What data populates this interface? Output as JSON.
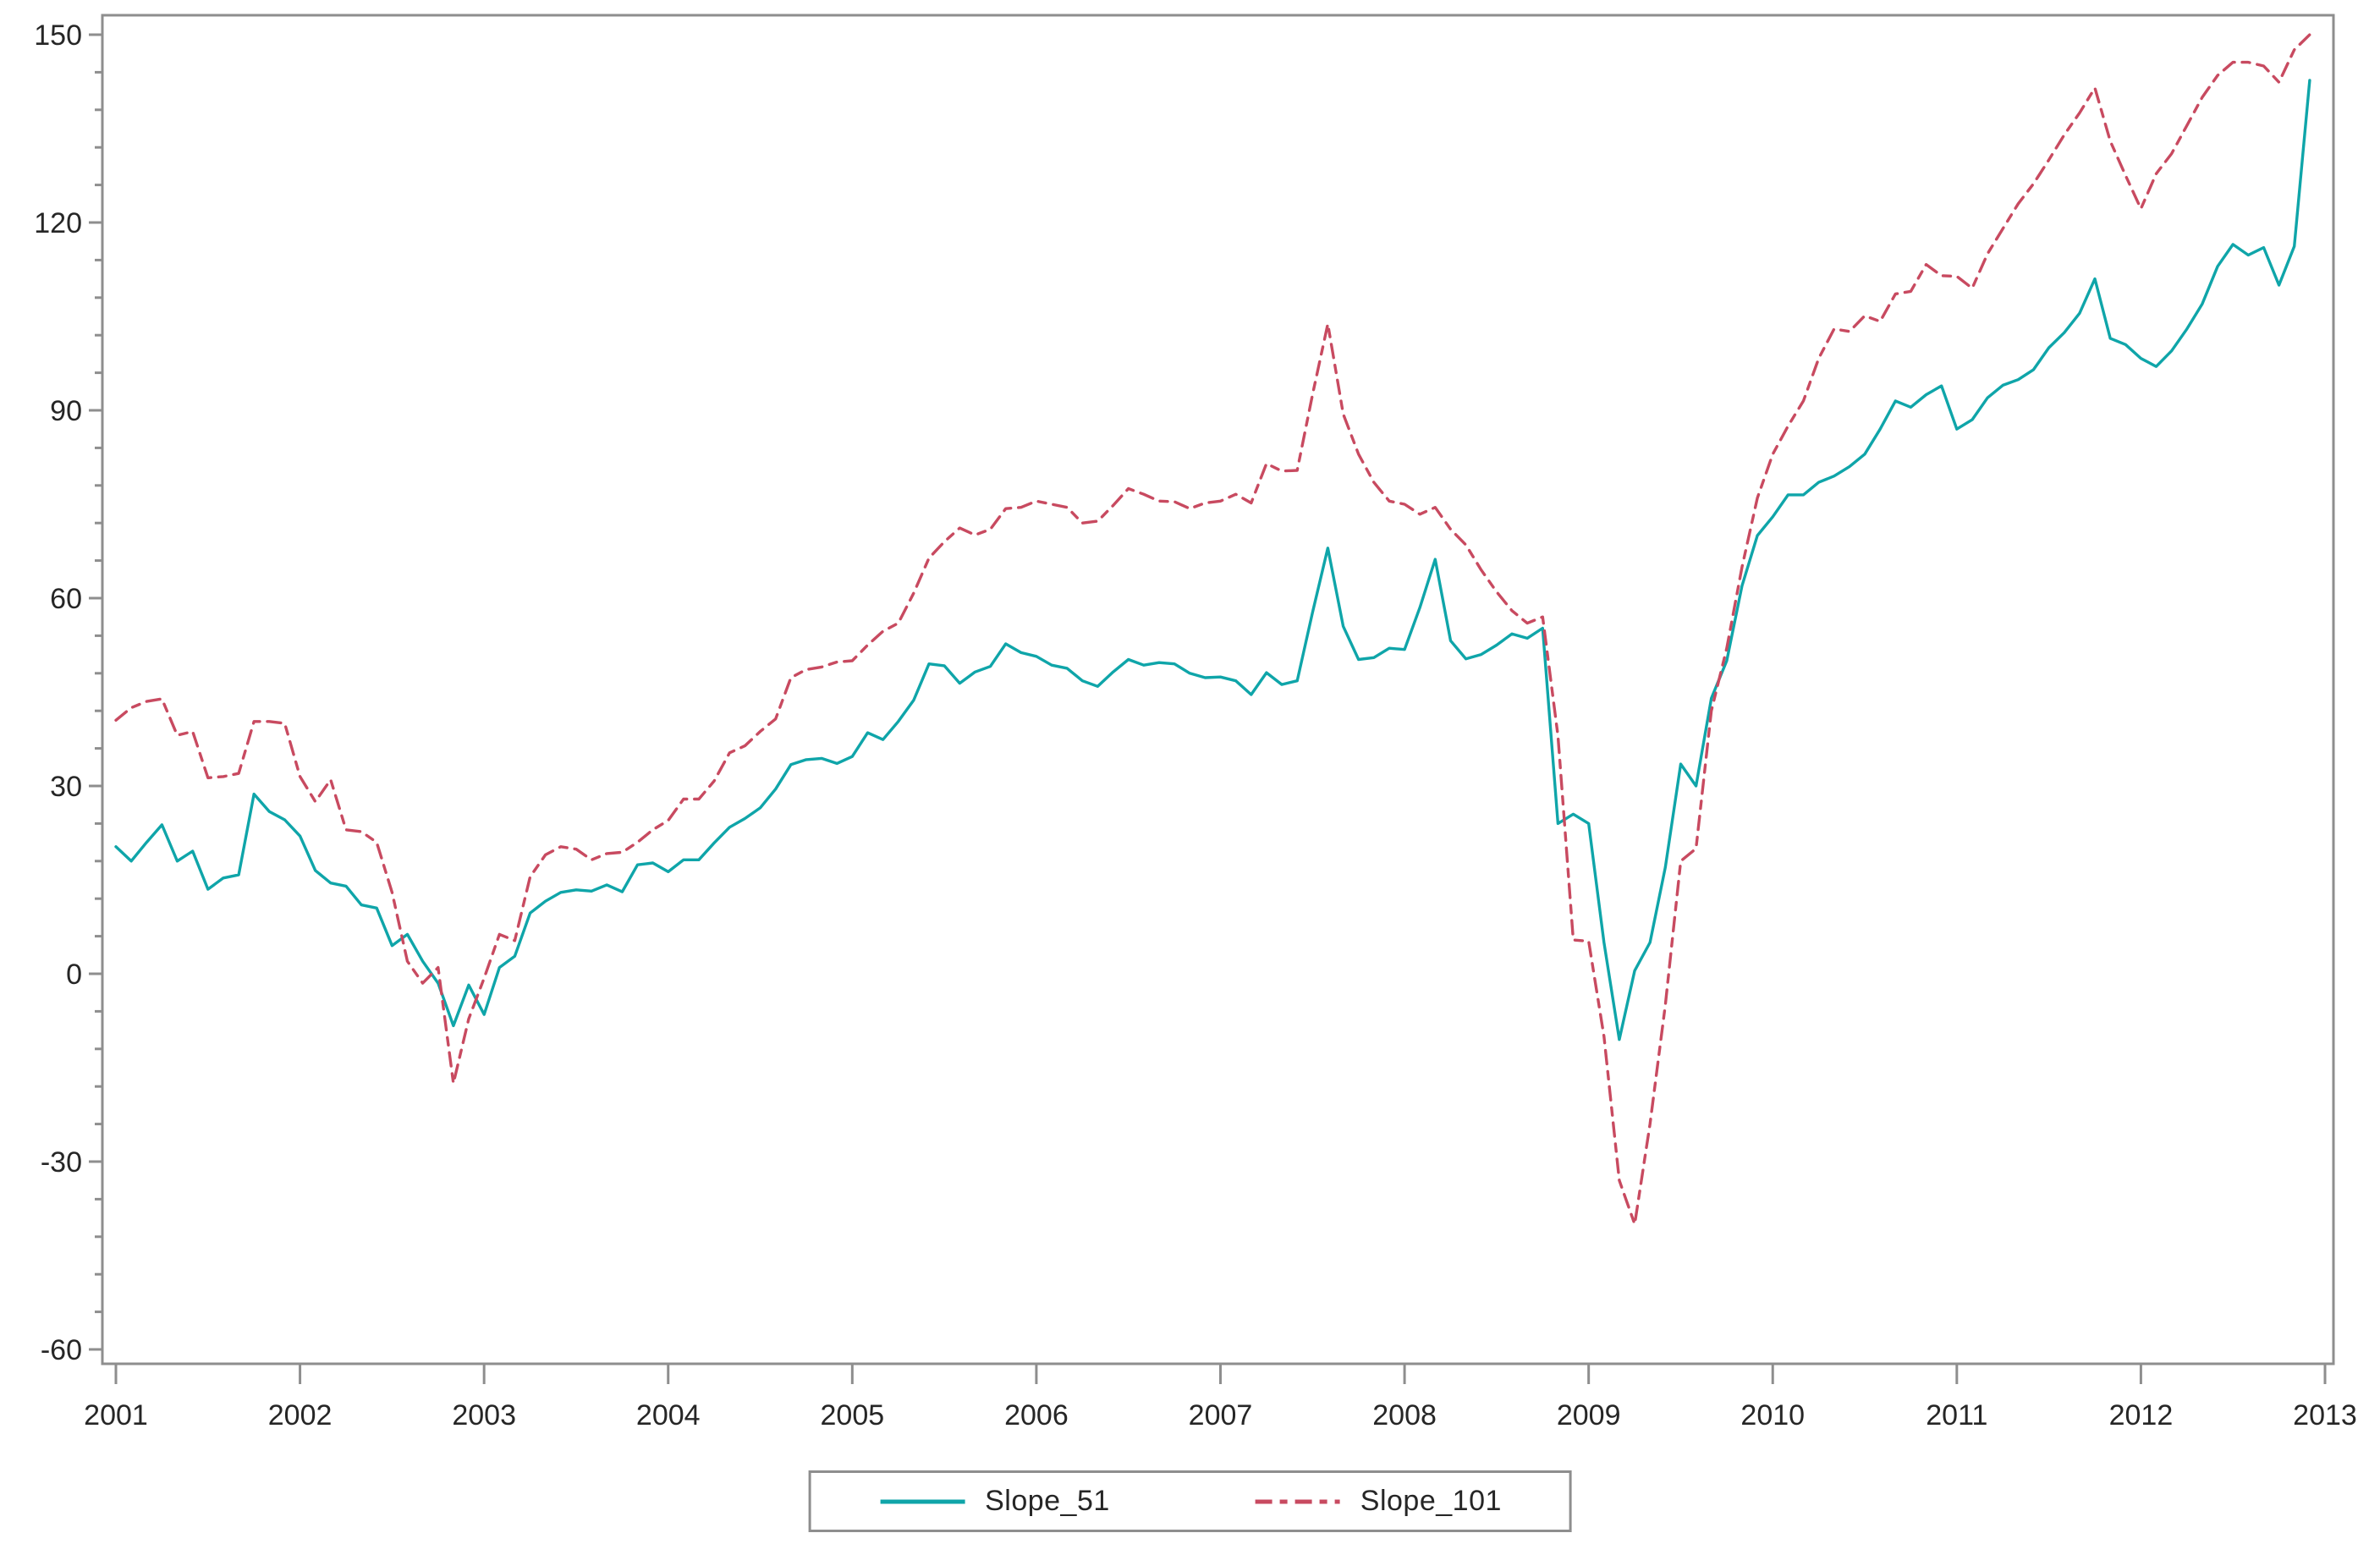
{
  "chart_data": {
    "type": "line",
    "title": "",
    "x_start_year": 2001,
    "points_per_year": 12,
    "x_axis": {
      "tick_start": 2001,
      "tick_end": 2013,
      "tick_step": 1,
      "labels": [
        "2001",
        "2002",
        "2003",
        "2004",
        "2005",
        "2006",
        "2007",
        "2008",
        "2009",
        "2010",
        "2011",
        "2012",
        "2013"
      ]
    },
    "y_axis": {
      "min": -60,
      "max": 150,
      "major_step": 30,
      "minor_step": 6,
      "labels": [
        "-60",
        "-30",
        "0",
        "30",
        "60",
        "90",
        "120",
        "150"
      ]
    },
    "grid": false,
    "legend_position": "bottom-center",
    "series": [
      {
        "name": "Slope_51",
        "color": "#0FA5A9",
        "style": "solid",
        "values": [
          20.3,
          18,
          21,
          23.8,
          18,
          19.6,
          13.5,
          15.3,
          15.8,
          28.7,
          25.9,
          24.6,
          22,
          16.5,
          14.5,
          14,
          11,
          10.5,
          4.5,
          6.3,
          2,
          -1.5,
          -8.3,
          -1.8,
          -6.5,
          1,
          2.8,
          9.7,
          11.6,
          13,
          13.4,
          13.2,
          14.2,
          13.1,
          17.4,
          17.7,
          16.3,
          18.2,
          18.2,
          20.9,
          23.4,
          24.8,
          26.5,
          29.5,
          33.4,
          34.2,
          34.4,
          33.6,
          34.7,
          38.5,
          37.4,
          40.3,
          43.7,
          49.5,
          49.2,
          46.4,
          48.2,
          49.1,
          52.7,
          51.3,
          50.7,
          49.3,
          48.8,
          46.8,
          45.9,
          48.2,
          50.2,
          49.3,
          49.7,
          49.5,
          48,
          47.3,
          47.4,
          46.8,
          44.6,
          48.1,
          46.2,
          46.8,
          57.7,
          68,
          55.5,
          50.2,
          50.5,
          52,
          51.8,
          58.5,
          66.2,
          53.2,
          50.3,
          51,
          52.5,
          54.3,
          53.6,
          55.2,
          24,
          25.5,
          24,
          5,
          -10.5,
          0.5,
          5,
          17,
          33.5,
          30,
          44,
          50,
          62,
          70,
          73,
          76.5,
          76.5,
          78.5,
          79.5,
          81,
          83,
          87,
          91.5,
          90.5,
          92.5,
          93.9,
          87,
          88.5,
          92,
          94,
          94.9,
          96.5,
          100,
          102.4,
          105.5,
          111,
          101.5,
          100.5,
          98.3,
          97,
          99.5,
          103,
          107,
          113,
          116.5,
          114.8,
          116,
          110,
          116.2,
          142.7
        ]
      },
      {
        "name": "Slope_101",
        "color": "#C84A60",
        "style": "dashed",
        "values": [
          40.5,
          42.5,
          43.5,
          43.9,
          38.1,
          38.7,
          31.3,
          31.5,
          32,
          40.3,
          40.3,
          40,
          31.5,
          27.5,
          31,
          23,
          22.7,
          21,
          13,
          2,
          -1.5,
          1,
          -17.5,
          -7.2,
          -0.7,
          6.3,
          5.3,
          15.5,
          19,
          20.3,
          19.9,
          18.2,
          19.2,
          19.4,
          21,
          23,
          24.5,
          27.9,
          27.9,
          30.8,
          35.3,
          36.4,
          38.7,
          40.7,
          47.3,
          48.6,
          49,
          49.8,
          50,
          52.5,
          54.7,
          56,
          60.8,
          66.4,
          69,
          71.2,
          70.1,
          71,
          74.3,
          74.5,
          75.5,
          75,
          74.5,
          72,
          72.3,
          74.8,
          77.5,
          76.6,
          75.5,
          75.4,
          74.3,
          75.2,
          75.5,
          76.6,
          75.2,
          81.5,
          80.3,
          80.4,
          92.5,
          103.8,
          89.4,
          83,
          78.5,
          75.5,
          75,
          73.4,
          74.5,
          71,
          68.5,
          64.5,
          61,
          58,
          56,
          57,
          38,
          5.4,
          5.2,
          -10,
          -33,
          -40,
          -24,
          -5,
          18,
          20,
          42,
          52,
          65,
          76,
          83,
          87.5,
          91.5,
          98.3,
          103,
          102.6,
          105.1,
          104.2,
          108.6,
          109,
          113.3,
          111.5,
          111.4,
          109.5,
          115,
          119,
          123,
          126.2,
          130,
          134,
          137.5,
          141.5,
          133,
          127.5,
          122.2,
          127.8,
          131,
          135.5,
          140,
          143.5,
          145.6,
          145.6,
          145,
          142.4,
          147.6,
          150
        ]
      }
    ]
  },
  "colors": {
    "axis": "#8E8E8E",
    "tick_label": "#262626",
    "background": "#FFFFFF"
  }
}
